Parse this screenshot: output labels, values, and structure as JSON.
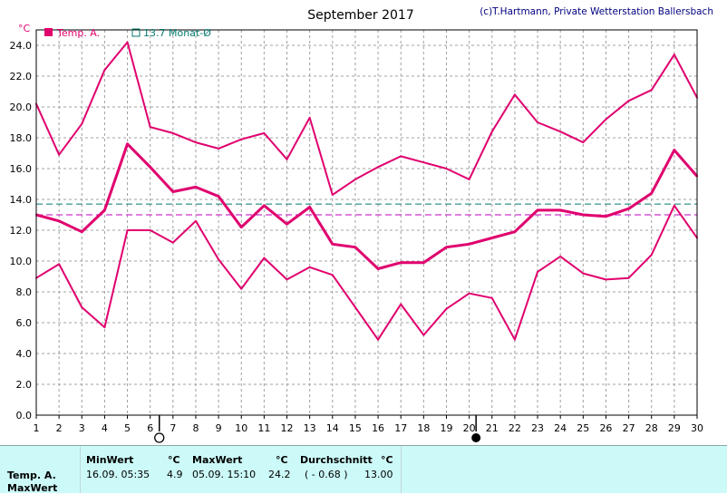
{
  "chart_data": {
    "type": "line",
    "title": "September 2017",
    "copyright": "(c)T.Hartmann, Private Wetterstation Ballersbach",
    "y_unit": "°C",
    "legend": [
      {
        "name": "Temp. A.",
        "color": "#e0006e",
        "marker": "filled-square"
      },
      {
        "name": "13.7 Monat-Ø",
        "color": "#007b6e",
        "marker": "hollow-square"
      }
    ],
    "x": [
      1,
      2,
      3,
      4,
      5,
      6,
      7,
      8,
      9,
      10,
      11,
      12,
      13,
      14,
      15,
      16,
      17,
      18,
      19,
      20,
      21,
      22,
      23,
      24,
      25,
      26,
      27,
      28,
      29,
      30
    ],
    "x_ticks": [
      "1",
      "2",
      "3",
      "4",
      "5",
      "6",
      "7",
      "8",
      "9",
      "10",
      "11",
      "12",
      "13",
      "14",
      "15",
      "16",
      "17",
      "18",
      "19",
      "20",
      "21",
      "22",
      "23",
      "24",
      "25",
      "26",
      "27",
      "28",
      "29",
      "30"
    ],
    "xlim": [
      1,
      30
    ],
    "ylim": [
      0,
      25
    ],
    "y_ticks": [
      "0.0",
      "2.0",
      "4.0",
      "6.0",
      "8.0",
      "10.0",
      "12.0",
      "14.0",
      "16.0",
      "18.0",
      "20.0",
      "22.0",
      "24.0"
    ],
    "grid": true,
    "legend_position": "top-left",
    "series": [
      {
        "role": "max",
        "color": "#e0006e",
        "values": [
          20.2,
          16.9,
          18.9,
          22.4,
          24.2,
          18.7,
          18.3,
          17.7,
          17.3,
          17.9,
          18.3,
          16.6,
          19.3,
          14.3,
          15.3,
          16.1,
          16.8,
          16.4,
          16.0,
          15.3,
          18.4,
          20.8,
          19.0,
          18.4,
          17.7,
          19.2,
          20.4,
          21.1,
          23.4,
          20.6
        ]
      },
      {
        "role": "mean",
        "color": "#e0006e",
        "values": [
          13.0,
          12.6,
          11.9,
          13.3,
          17.6,
          16.1,
          14.5,
          14.8,
          14.2,
          12.2,
          13.6,
          12.4,
          13.5,
          11.1,
          10.9,
          9.5,
          9.9,
          9.9,
          10.9,
          11.1,
          11.5,
          11.9,
          13.3,
          13.3,
          13.0,
          12.9,
          13.4,
          14.4,
          17.2,
          15.5
        ]
      },
      {
        "role": "min",
        "color": "#e0006e",
        "values": [
          8.9,
          9.8,
          7.0,
          5.7,
          12.0,
          12.0,
          11.2,
          12.6,
          10.1,
          8.2,
          10.2,
          8.8,
          9.6,
          9.1,
          7.0,
          4.9,
          7.2,
          5.2,
          6.9,
          7.9,
          7.6,
          4.9,
          9.3,
          10.3,
          9.2,
          8.8,
          8.9,
          10.4,
          13.6,
          11.5
        ]
      }
    ],
    "reference_lines": [
      {
        "value": 13.7,
        "color": "#007b6e",
        "style": "dashed"
      },
      {
        "value": 13.0,
        "color": "#c000c0",
        "style": "dashed"
      }
    ],
    "moon_phases": [
      {
        "day": 6.4,
        "phase": "full-moon"
      },
      {
        "day": 20.3,
        "phase": "new-moon"
      }
    ]
  },
  "stats": {
    "row_labels": [
      "Temp. A.",
      "MaxWert"
    ],
    "headers": {
      "min": "MinWert",
      "min_unit": "°C",
      "max": "MaxWert",
      "max_unit": "°C",
      "avg": "Durchschnitt",
      "avg_unit": "°C"
    },
    "values": {
      "min_time": "16.09.  05:35",
      "min_value": "4.9",
      "max_time": "05.09.  15:10",
      "max_value": "24.2",
      "avg_delta": "( - 0.68 )",
      "avg_value": "13.00"
    }
  }
}
